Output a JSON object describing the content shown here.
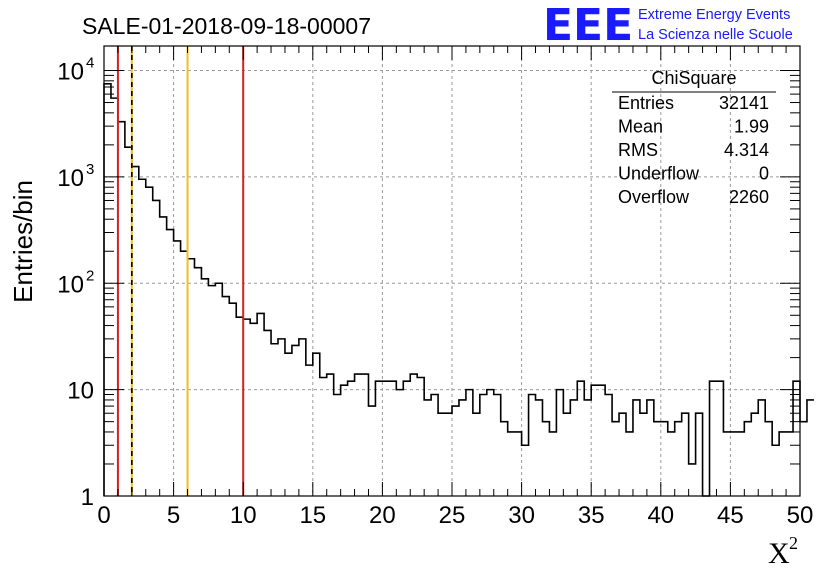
{
  "chart_data": {
    "type": "histogram",
    "title": "SALE-01-2018-09-18-00007",
    "xlabel": "X",
    "xlabel_superscript": "2",
    "ylabel": "Entries/bin",
    "xlim": [
      0,
      50
    ],
    "ylim": [
      1,
      17000
    ],
    "yscale": "log",
    "grid": true,
    "bin_width": 0.5,
    "xticks": [
      "0",
      "5",
      "10",
      "15",
      "20",
      "25",
      "30",
      "35",
      "40",
      "45",
      "50"
    ],
    "yticks": [
      {
        "value": 1,
        "label": "1",
        "sup": ""
      },
      {
        "value": 10,
        "label": "10",
        "sup": ""
      },
      {
        "value": 100,
        "label": "10",
        "sup": "2"
      },
      {
        "value": 1000,
        "label": "10",
        "sup": "3"
      },
      {
        "value": 10000,
        "label": "10",
        "sup": "4"
      }
    ],
    "counts": [
      7500,
      5500,
      3300,
      1900,
      1250,
      950,
      800,
      600,
      420,
      320,
      250,
      200,
      170,
      140,
      110,
      95,
      100,
      75,
      65,
      48,
      46,
      42,
      52,
      36,
      27,
      30,
      22,
      26,
      30,
      17,
      22,
      13,
      14,
      9,
      11,
      12,
      14,
      14,
      7,
      12,
      12,
      12,
      10,
      12,
      14,
      13,
      8,
      9,
      6,
      6,
      7,
      8,
      10,
      6,
      9,
      10,
      9,
      5,
      4,
      4,
      3,
      9,
      8,
      5,
      4,
      10,
      6,
      8,
      12,
      8,
      11,
      11,
      9,
      5,
      6,
      4,
      8,
      6,
      8,
      5,
      5,
      4,
      5,
      6,
      2,
      6,
      1,
      12,
      12,
      4,
      4,
      4,
      5,
      6,
      8,
      5,
      3,
      4,
      4,
      12,
      5,
      8
    ],
    "vlines": [
      {
        "x": 1,
        "color": "#d42020",
        "style": "solid"
      },
      {
        "x": 2,
        "color": "#f0c020",
        "style": "solid"
      },
      {
        "x": 2,
        "color": "#000000",
        "style": "dashed"
      },
      {
        "x": 6,
        "color": "#f0c020",
        "style": "solid"
      },
      {
        "x": 10,
        "color": "#d42020",
        "style": "solid"
      }
    ]
  },
  "stats": {
    "title": "ChiSquare",
    "rows": [
      {
        "label": "Entries",
        "value": "32141"
      },
      {
        "label": "Mean",
        "value": "1.99"
      },
      {
        "label": "RMS",
        "value": "4.314"
      },
      {
        "label": "Underflow",
        "value": "0"
      },
      {
        "label": "Overflow",
        "value": "2260"
      }
    ]
  },
  "logo": {
    "mark": "EEE",
    "line1": "Extreme Energy Events",
    "line2": "La Scienza nelle Scuole",
    "color": "#1a1aff"
  }
}
